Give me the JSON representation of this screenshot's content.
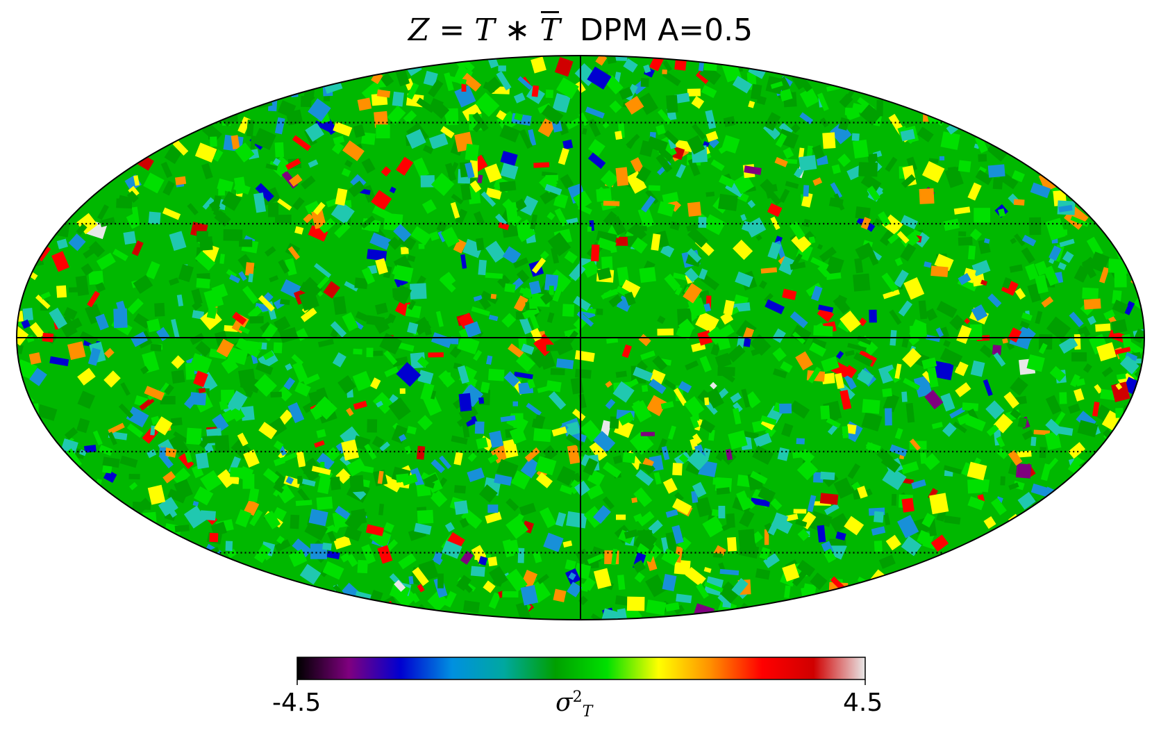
{
  "title": {
    "formula_z": "Z",
    "eq": " = ",
    "formula_t": "T",
    "star": " ∗ ",
    "formula_tbar": "T",
    "suffix": "DPM A=0.5"
  },
  "projection": "mollweide",
  "graticule": {
    "meridians": "dotted",
    "parallels": "dotted",
    "color": "#000000"
  },
  "colormap": {
    "stops": [
      "#000000",
      "#7f007f",
      "#0000d0",
      "#0090e0",
      "#00a8a0",
      "#00a000",
      "#00e000",
      "#ffff00",
      "#ff9000",
      "#ff0000",
      "#d00000",
      "#e8e8e8"
    ],
    "background_color": "#00b800"
  },
  "colorbar": {
    "min_label": "-4.5",
    "max_label": "4.5",
    "quantity_symbol": "σ",
    "quantity_sup": "2",
    "quantity_sub": "T",
    "range": [
      -4.5,
      4.5
    ]
  }
}
